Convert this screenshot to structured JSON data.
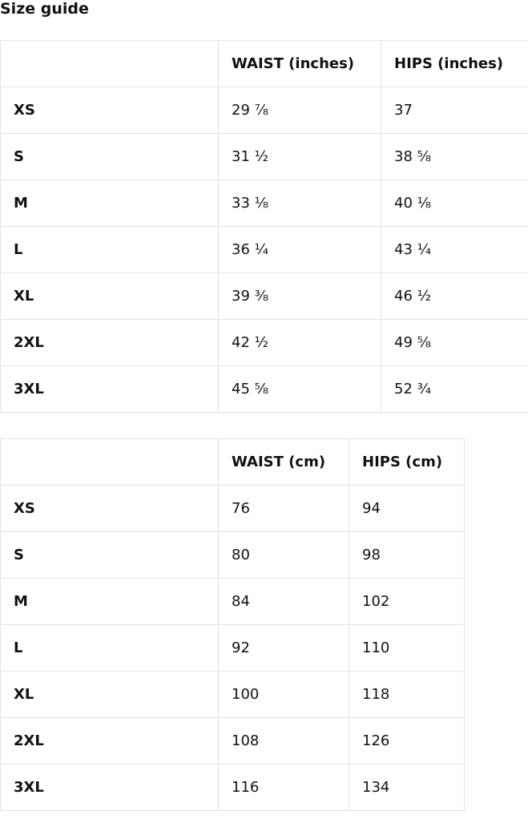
{
  "title": "Size guide",
  "inches_table": {
    "headers": [
      "",
      "WAIST (inches)",
      "HIPS (inches)"
    ],
    "rows": [
      [
        "XS",
        "29 ⅞",
        "37"
      ],
      [
        "S",
        "31 ½",
        "38 ⅝"
      ],
      [
        "M",
        "33 ⅛",
        "40 ⅛"
      ],
      [
        "L",
        "36 ¼",
        "43 ¼"
      ],
      [
        "XL",
        "39 ⅜",
        "46 ½"
      ],
      [
        "2XL",
        "42 ½",
        "49 ⅝"
      ],
      [
        "3XL",
        "45 ⅝",
        "52 ¾"
      ]
    ]
  },
  "cm_table": {
    "headers": [
      "",
      "WAIST (cm)",
      "HIPS (cm)"
    ],
    "rows": [
      [
        "XS",
        "76",
        "94"
      ],
      [
        "S",
        "80",
        "98"
      ],
      [
        "M",
        "84",
        "102"
      ],
      [
        "L",
        "92",
        "110"
      ],
      [
        "XL",
        "100",
        "118"
      ],
      [
        "2XL",
        "108",
        "126"
      ],
      [
        "3XL",
        "116",
        "134"
      ]
    ]
  }
}
